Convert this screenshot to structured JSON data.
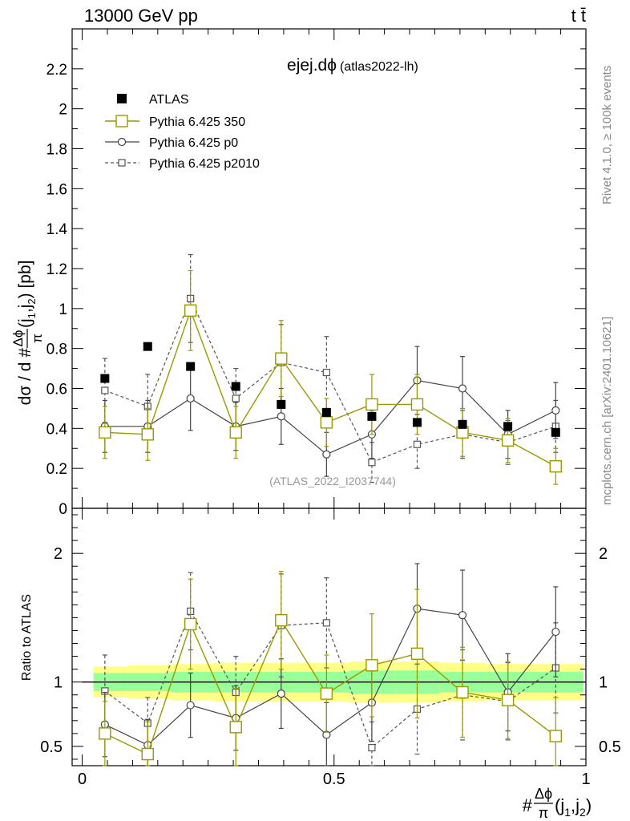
{
  "chart_data": [
    {
      "type": "scatter",
      "panel": "main",
      "title": "ejej.dϕ",
      "title_suffix": "(atlas2022-lh)",
      "header_left": "13000 GeV pp",
      "header_right": "t t̄",
      "ylabel": "dσ / d #Δϕ/π(j1,j2) [pb]",
      "ylabel_main": "dσ / d #",
      "ylabel_frac_num": "Δϕ",
      "ylabel_frac_den": "π",
      "ylabel_args": "(j",
      "ylabel_sub1": "1",
      "ylabel_comma": ",j",
      "ylabel_sub2": "2",
      "ylabel_unit": ") [pb]",
      "watermark": "(ATLAS_2022_I2037744)",
      "side_label_top": "Rivet 4.1.0, ≥ 100k events",
      "side_label_bottom": "mcplots.cern.ch [arXiv:2401.10621]",
      "ylim": [
        0,
        2.4
      ],
      "yticks": [
        0,
        0.2,
        0.4,
        0.6,
        0.8,
        1,
        1.2,
        1.4,
        1.6,
        1.8,
        2,
        2.2
      ],
      "ytick_labels": [
        "0",
        "0.2",
        "0.4",
        "0.6",
        "0.8",
        "1",
        "1.2",
        "1.4",
        "1.6",
        "1.8",
        "2",
        "2.2"
      ],
      "x": [
        0.045,
        0.13,
        0.215,
        0.305,
        0.395,
        0.485,
        0.575,
        0.665,
        0.755,
        0.845,
        0.94
      ],
      "legend": [
        "ATLAS",
        "Pythia 6.425 350",
        "Pythia 6.425 p0",
        "Pythia 6.425 p2010"
      ],
      "series": [
        {
          "name": "ATLAS",
          "values": [
            0.65,
            0.81,
            0.71,
            0.61,
            0.52,
            0.48,
            0.46,
            0.43,
            0.42,
            0.41,
            0.38
          ],
          "errors": [
            0,
            0,
            0,
            0,
            0,
            0,
            0,
            0,
            0,
            0,
            0
          ]
        },
        {
          "name": "Pythia 6.425 350",
          "values": [
            0.38,
            0.37,
            0.99,
            0.38,
            0.75,
            0.43,
            0.52,
            0.52,
            0.38,
            0.34,
            0.21
          ],
          "errors": [
            0.13,
            0.13,
            0.2,
            0.13,
            0.19,
            0.12,
            0.15,
            0.15,
            0.12,
            0.11,
            0.09
          ]
        },
        {
          "name": "Pythia 6.425 p0",
          "values": [
            0.41,
            0.41,
            0.55,
            0.41,
            0.46,
            0.27,
            0.37,
            0.64,
            0.6,
            0.37,
            0.49
          ],
          "errors": [
            0.13,
            0.13,
            0.16,
            0.12,
            0.14,
            0.11,
            0.12,
            0.17,
            0.16,
            0.12,
            0.14
          ]
        },
        {
          "name": "Pythia 6.425 p2010",
          "values": [
            0.59,
            0.51,
            1.05,
            0.55,
            0.73,
            0.68,
            0.23,
            0.32,
            0.37,
            0.33,
            0.41
          ],
          "errors": [
            0.16,
            0.16,
            0.22,
            0.15,
            0.19,
            0.18,
            0.1,
            0.12,
            0.12,
            0.11,
            0.13
          ]
        }
      ]
    },
    {
      "type": "scatter",
      "panel": "ratio",
      "ylabel": "Ratio to ATLAS",
      "xlabel": "#Δϕ/π(j1,j2)",
      "xlabel_prefix": "#",
      "xlabel_frac_num": "Δϕ",
      "xlabel_frac_den": "π",
      "xlabel_args": "(j",
      "xlabel_sub1": "1",
      "xlabel_comma": ",j",
      "xlabel_sub2": "2",
      "xlabel_close": ")",
      "xlim": [
        0,
        1
      ],
      "xticks": [
        0,
        0.5,
        1
      ],
      "xtick_labels": [
        "0",
        "0.5",
        "1"
      ],
      "ylim": [
        0.35,
        2.35
      ],
      "yticks": [
        0.5,
        1,
        2
      ],
      "ytick_labels": [
        "0.5",
        "1",
        "2"
      ],
      "x": [
        0.045,
        0.13,
        0.215,
        0.305,
        0.395,
        0.485,
        0.575,
        0.665,
        0.755,
        0.845,
        0.94
      ],
      "band_edges": [
        0,
        0.09,
        0.175,
        0.26,
        0.35,
        0.44,
        0.53,
        0.62,
        0.71,
        0.8,
        0.89,
        1
      ],
      "band_inner": [
        0.07,
        0.07,
        0.08,
        0.08,
        0.08,
        0.08,
        0.09,
        0.09,
        0.08,
        0.08,
        0.08
      ],
      "band_outer": [
        0.12,
        0.13,
        0.14,
        0.15,
        0.15,
        0.15,
        0.16,
        0.16,
        0.15,
        0.14,
        0.14
      ],
      "series": [
        {
          "name": "Pythia 6.425 350",
          "values": [
            0.6,
            0.44,
            1.45,
            0.65,
            1.48,
            0.91,
            1.13,
            1.22,
            0.92,
            0.86,
            0.58
          ],
          "errors": [
            0.25,
            0.25,
            0.35,
            0.3,
            0.38,
            0.3,
            0.4,
            0.5,
            0.35,
            0.3,
            0.3
          ]
        },
        {
          "name": "Pythia 6.425 p0",
          "values": [
            0.67,
            0.51,
            0.82,
            0.72,
            0.91,
            0.59,
            0.84,
            1.57,
            1.52,
            0.92,
            1.39
          ],
          "errors": [
            0.25,
            0.2,
            0.25,
            0.25,
            0.27,
            0.25,
            0.3,
            0.35,
            0.35,
            0.3,
            0.35
          ]
        },
        {
          "name": "Pythia 6.425 p2010",
          "values": [
            0.93,
            0.68,
            1.55,
            0.92,
            1.44,
            1.46,
            0.49,
            0.79,
            0.9,
            0.85,
            1.11
          ],
          "errors": [
            0.28,
            0.2,
            0.3,
            0.28,
            0.4,
            0.35,
            0.2,
            0.35,
            0.35,
            0.3,
            0.35
          ]
        }
      ]
    }
  ],
  "colors": {
    "atlas": "#000000",
    "p350": "#999900",
    "p0": "#444444",
    "p2010": "#555555",
    "band_inner": "#99ff99",
    "band_outer": "#ffff88",
    "watermark": "#999999",
    "side_label": "#888888"
  }
}
